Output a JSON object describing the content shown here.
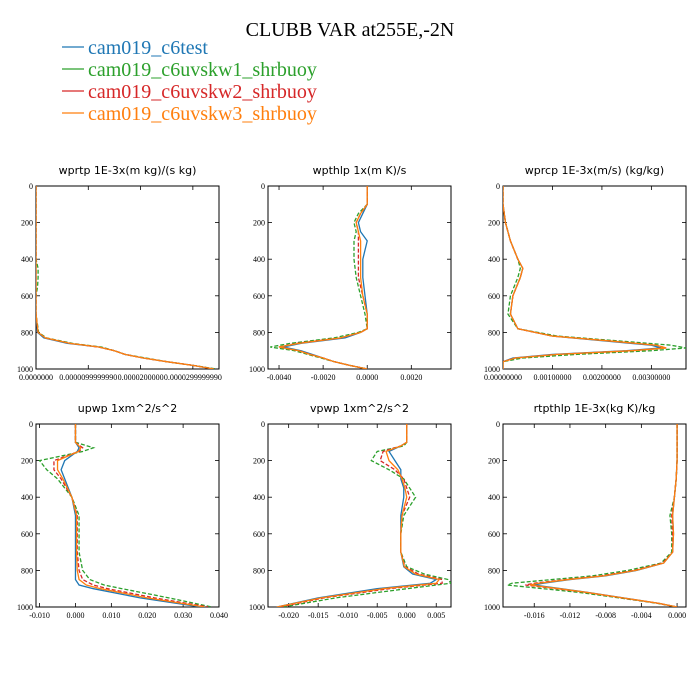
{
  "figure": {
    "title": "CLUBB VAR at255E,-2N"
  },
  "legend": [
    {
      "name": "cam019_c6test",
      "color": "#1f77b4",
      "dash": "solid"
    },
    {
      "name": "cam019_c6uvskw1_shrbuoy",
      "color": "#2ca02c",
      "dash": "dash"
    },
    {
      "name": "cam019_c6uvskw2_shrbuoy",
      "color": "#d62728",
      "dash": "dash"
    },
    {
      "name": "cam019_c6uvskw3_shrbuoy",
      "color": "#ff7f0e",
      "dash": "solid"
    }
  ],
  "chart_data": [
    {
      "type": "line",
      "title": "wprtp  1E-3x(m kg)/(s kg)",
      "xlim": [
        0,
        3.5e-05
      ],
      "ylim": [
        1000,
        0
      ],
      "xticks": [
        0,
        1e-05,
        2e-05,
        3e-05
      ],
      "xtick_labels": [
        "0.0000000",
        "0.0000099999990",
        "0.0000200000",
        "0.0000299999990"
      ],
      "yticks": [
        0,
        200,
        400,
        600,
        800,
        1000
      ],
      "y": [
        0,
        100,
        200,
        300,
        400,
        450,
        500,
        550,
        600,
        700,
        800,
        830,
        860,
        880,
        900,
        920,
        940,
        960,
        980,
        1000
      ],
      "series": [
        {
          "values": [
            0,
            0,
            0,
            0,
            0,
            0,
            0,
            0,
            0,
            0,
            3e-07,
            1.5e-06,
            6e-06,
            1.2e-05,
            1.5e-05,
            1.7e-05,
            2.05e-05,
            2.5e-05,
            3e-05,
            3.4e-05
          ]
        },
        {
          "values": [
            0,
            0,
            0,
            0,
            0,
            4e-07,
            4e-07,
            3e-07,
            0,
            0,
            5e-07,
            2e-06,
            7e-06,
            1.25e-05,
            1.5e-05,
            1.7e-05,
            2.1e-05,
            2.5e-05,
            3e-05,
            3.45e-05
          ]
        },
        {
          "values": [
            0,
            0,
            0,
            0,
            0,
            0,
            0,
            0,
            0,
            0,
            4e-07,
            1.8e-06,
            6.5e-06,
            1.2e-05,
            1.5e-05,
            1.7e-05,
            2.05e-05,
            2.5e-05,
            3e-05,
            3.4e-05
          ]
        },
        {
          "values": [
            0,
            0,
            0,
            0,
            0,
            0,
            0,
            0,
            0,
            0,
            4e-07,
            1.8e-06,
            6.5e-06,
            1.2e-05,
            1.5e-05,
            1.7e-05,
            2.05e-05,
            2.5e-05,
            3e-05,
            3.4e-05
          ]
        }
      ]
    },
    {
      "type": "line",
      "title": "wpthlp  1x(m K)/s",
      "xlim": [
        -0.0045,
        0.0038
      ],
      "ylim": [
        1000,
        0
      ],
      "xticks": [
        -0.004,
        -0.002,
        0,
        0.002
      ],
      "xtick_labels": [
        "-0.0040",
        "-0.0020",
        "0.0000",
        "0.0020"
      ],
      "yticks": [
        0,
        200,
        400,
        600,
        800,
        1000
      ],
      "y": [
        0,
        100,
        150,
        200,
        250,
        300,
        400,
        500,
        600,
        700,
        780,
        800,
        830,
        860,
        880,
        900,
        920,
        940,
        960,
        980,
        1000
      ],
      "series": [
        {
          "values": [
            0,
            0,
            -0.0002,
            -0.0004,
            -0.0003,
            0.0,
            -0.0002,
            -0.0002,
            -0.0001,
            0.0,
            0.0,
            -0.0003,
            -0.001,
            -0.003,
            -0.0038,
            -0.003,
            -0.0025,
            -0.002,
            -0.0015,
            -0.0008,
            0.0
          ]
        },
        {
          "values": [
            0,
            0,
            -0.0004,
            -0.0006,
            -0.0005,
            -0.0006,
            -0.0006,
            -0.0005,
            -0.0003,
            -0.0001,
            0.0,
            -0.0004,
            -0.0015,
            -0.0035,
            -0.0044,
            -0.0033,
            -0.0027,
            -0.0021,
            -0.0015,
            -0.0008,
            0.0
          ]
        },
        {
          "values": [
            0,
            0,
            -0.0003,
            -0.0005,
            -0.0004,
            -0.0004,
            -0.0004,
            -0.0004,
            -0.0002,
            0.0,
            0.0,
            -0.0003,
            -0.0012,
            -0.0032,
            -0.004,
            -0.0031,
            -0.0026,
            -0.002,
            -0.0015,
            -0.0008,
            0.0
          ]
        },
        {
          "values": [
            0,
            0,
            -0.0003,
            -0.0005,
            -0.0004,
            -0.0003,
            -0.0003,
            -0.0003,
            -0.0002,
            0.0,
            0.0,
            -0.0003,
            -0.0012,
            -0.0031,
            -0.004,
            -0.0031,
            -0.0026,
            -0.002,
            -0.0015,
            -0.0008,
            0.0
          ]
        }
      ]
    },
    {
      "type": "line",
      "title": "wprcp  1E-3x(m/s) (kg/kg)",
      "xlim": [
        0,
        0.0037
      ],
      "ylim": [
        1000,
        0
      ],
      "xticks": [
        0,
        0.001,
        0.002,
        0.003
      ],
      "xtick_labels": [
        "0.00000000",
        "0.00100000",
        "0.00200000",
        "0.00300000"
      ],
      "yticks": [
        0,
        200,
        400,
        600,
        800,
        1000
      ],
      "y": [
        0,
        100,
        200,
        300,
        400,
        450,
        500,
        600,
        700,
        780,
        820,
        850,
        870,
        885,
        900,
        920,
        940,
        960,
        1000
      ],
      "series": [
        {
          "values": [
            0,
            0,
            5e-05,
            0.00015,
            0.0003,
            0.0004,
            0.00035,
            0.0002,
            0.00015,
            0.0003,
            0.001,
            0.0022,
            0.003,
            0.0032,
            0.0025,
            0.001,
            0.0002,
            0,
            0
          ]
        },
        {
          "values": [
            0,
            0,
            5e-05,
            0.00015,
            0.0003,
            0.00035,
            0.0003,
            0.00015,
            0.0001,
            0.0003,
            0.0011,
            0.0025,
            0.0034,
            0.0037,
            0.003,
            0.0015,
            0.0004,
            0,
            0
          ]
        },
        {
          "values": [
            0,
            0,
            5e-05,
            0.00015,
            0.0003,
            0.0004,
            0.00035,
            0.0002,
            0.00015,
            0.0003,
            0.001,
            0.0023,
            0.0031,
            0.0033,
            0.0026,
            0.0011,
            0.00025,
            0,
            0
          ]
        },
        {
          "values": [
            0,
            0,
            5e-05,
            0.00015,
            0.0003,
            0.0004,
            0.00035,
            0.0002,
            0.00015,
            0.0003,
            0.001,
            0.0023,
            0.0031,
            0.0033,
            0.0026,
            0.0011,
            0.00025,
            0,
            0
          ]
        }
      ]
    },
    {
      "type": "line",
      "title": "upwp  1xm^2/s^2",
      "xlim": [
        -0.011,
        0.04
      ],
      "ylim": [
        1000,
        0
      ],
      "xticks": [
        -0.01,
        0,
        0.01,
        0.02,
        0.03,
        0.04
      ],
      "xtick_labels": [
        "-0.010",
        "0.000",
        "0.010",
        "0.020",
        "0.030",
        "0.040"
      ],
      "yticks": [
        0,
        200,
        400,
        600,
        800,
        1000
      ],
      "y": [
        0,
        100,
        130,
        150,
        200,
        250,
        300,
        400,
        500,
        600,
        700,
        800,
        850,
        880,
        900,
        950,
        1000
      ],
      "series": [
        {
          "values": [
            0,
            0,
            0.001,
            0.0005,
            -0.003,
            -0.004,
            -0.003,
            -0.001,
            0.0,
            0.0,
            0.0,
            0.0,
            0.0,
            0.001,
            0.005,
            0.018,
            0.035
          ]
        },
        {
          "values": [
            0,
            0,
            0.005,
            0.002,
            -0.01,
            -0.008,
            -0.005,
            -0.001,
            0.001,
            0.001,
            0.001,
            0.002,
            0.004,
            0.008,
            0.013,
            0.026,
            0.038
          ]
        },
        {
          "values": [
            0,
            0,
            0.002,
            0.001,
            -0.006,
            -0.006,
            -0.004,
            -0.001,
            0.0005,
            0.0005,
            0.0005,
            0.001,
            0.002,
            0.005,
            0.009,
            0.022,
            0.037
          ]
        },
        {
          "values": [
            0,
            0,
            0.0015,
            0.0008,
            -0.005,
            -0.005,
            -0.0035,
            -0.001,
            0.0003,
            0.0003,
            0.0003,
            0.0005,
            0.001,
            0.003,
            0.007,
            0.02,
            0.036
          ]
        }
      ]
    },
    {
      "type": "line",
      "title": "vpwp  1xm^2/s^2",
      "xlim": [
        -0.0235,
        0.0075
      ],
      "ylim": [
        1000,
        0
      ],
      "xticks": [
        -0.02,
        -0.015,
        -0.01,
        -0.005,
        0,
        0.005
      ],
      "xtick_labels": [
        "-0.020",
        "-0.015",
        "-0.010",
        "-0.005",
        "0.000",
        "0.005"
      ],
      "yticks": [
        0,
        200,
        400,
        600,
        800,
        1000
      ],
      "y": [
        0,
        100,
        120,
        150,
        200,
        250,
        300,
        350,
        400,
        500,
        600,
        700,
        780,
        820,
        850,
        870,
        900,
        950,
        1000
      ],
      "series": [
        {
          "values": [
            0,
            0,
            -0.001,
            -0.003,
            -0.002,
            -0.001,
            -0.001,
            -0.0005,
            -0.0005,
            -0.001,
            -0.001,
            -0.001,
            -0.0005,
            0.001,
            0.005,
            0.004,
            -0.005,
            -0.015,
            -0.022
          ]
        },
        {
          "values": [
            0,
            0,
            -0.0005,
            -0.005,
            -0.006,
            -0.003,
            -0.0005,
            0.0005,
            0.0015,
            -0.0005,
            -0.001,
            -0.001,
            0.0,
            0.003,
            0.007,
            0.0075,
            0.0,
            -0.012,
            -0.021
          ]
        },
        {
          "values": [
            0,
            0,
            -0.001,
            -0.004,
            -0.0045,
            -0.002,
            -0.0005,
            0.0,
            0.0005,
            -0.0008,
            -0.001,
            -0.001,
            -0.0003,
            0.002,
            0.006,
            0.006,
            -0.003,
            -0.014,
            -0.0215
          ]
        },
        {
          "values": [
            0,
            0,
            -0.001,
            -0.0035,
            -0.003,
            -0.0015,
            -0.0008,
            -0.0003,
            0.0,
            -0.0008,
            -0.001,
            -0.001,
            -0.0004,
            0.0015,
            0.0055,
            0.005,
            -0.004,
            -0.0145,
            -0.022
          ]
        }
      ]
    },
    {
      "type": "line",
      "title": "rtpthlp  1E-3x(kg K)/kg",
      "xlim": [
        -0.0195,
        0.001
      ],
      "ylim": [
        1000,
        0
      ],
      "xticks": [
        -0.016,
        -0.012,
        -0.008,
        -0.004,
        0
      ],
      "xtick_labels": [
        "-0.016",
        "-0.012",
        "-0.008",
        "-0.004",
        "0.000"
      ],
      "yticks": [
        0,
        200,
        400,
        600,
        800,
        1000
      ],
      "y": [
        0,
        100,
        200,
        300,
        400,
        500,
        600,
        700,
        760,
        800,
        830,
        850,
        870,
        880,
        900,
        920,
        950,
        980,
        1000
      ],
      "series": [
        {
          "values": [
            0,
            0,
            0,
            -0.0001,
            -0.0003,
            -0.0005,
            -0.0004,
            -0.0005,
            -0.0015,
            -0.0045,
            -0.008,
            -0.012,
            -0.015,
            -0.016,
            -0.013,
            -0.01,
            -0.006,
            -0.002,
            0
          ]
        },
        {
          "values": [
            0,
            0,
            0,
            -0.0001,
            -0.0003,
            -0.0008,
            -0.0006,
            -0.0006,
            -0.0018,
            -0.0055,
            -0.0095,
            -0.014,
            -0.0185,
            -0.019,
            -0.015,
            -0.011,
            -0.0065,
            -0.0022,
            0
          ]
        },
        {
          "values": [
            0,
            0,
            0,
            -0.0001,
            -0.0003,
            -0.0006,
            -0.0005,
            -0.0005,
            -0.0016,
            -0.0048,
            -0.0085,
            -0.0125,
            -0.016,
            -0.017,
            -0.0135,
            -0.0102,
            -0.0062,
            -0.0021,
            0
          ]
        },
        {
          "values": [
            0,
            0,
            0,
            -0.0001,
            -0.0003,
            -0.0005,
            -0.0004,
            -0.0005,
            -0.0015,
            -0.0046,
            -0.0082,
            -0.0122,
            -0.0155,
            -0.0165,
            -0.0132,
            -0.0101,
            -0.0061,
            -0.002,
            0
          ]
        }
      ]
    }
  ]
}
